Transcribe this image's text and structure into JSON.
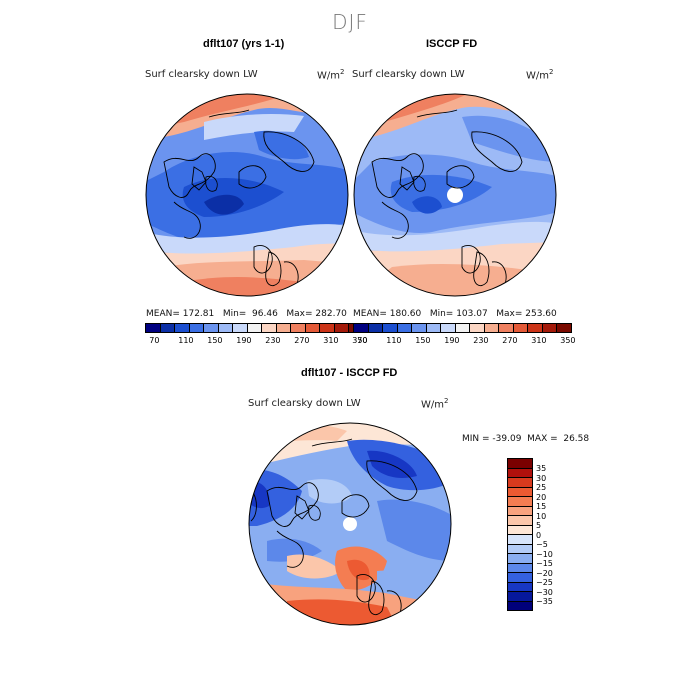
{
  "page": {
    "title": "DJF"
  },
  "panels": [
    {
      "title": "dflt107 (yrs 1-1)",
      "variable": "Surf clearsky down LW",
      "unit": "W/m",
      "unit_sup": "2",
      "stats": "MEAN= 172.81   Min=  96.46   Max= 282.70"
    },
    {
      "title": "ISCCP FD",
      "variable": "Surf clearsky down LW",
      "unit": "W/m",
      "unit_sup": "2",
      "stats": "MEAN= 180.60   Min= 103.07   Max= 253.60"
    },
    {
      "title": "dflt107 - ISCCP FD",
      "variable": "Surf clearsky down LW",
      "unit": "W/m",
      "unit_sup": "2",
      "stats": "MIN = -39.09  MAX =  26.58"
    }
  ],
  "colorbar_abs": {
    "colors": [
      "#000080",
      "#0b2fa6",
      "#1c4fd0",
      "#3b6fe4",
      "#6b94ef",
      "#9dbaf6",
      "#c9d9fa",
      "#f2f2f2",
      "#fbd6c4",
      "#f6ae90",
      "#ef8060",
      "#e45a38",
      "#cc3418",
      "#a41a0a",
      "#7a0a00"
    ],
    "ticks": [
      "70",
      "110",
      "150",
      "190",
      "230",
      "270",
      "310",
      "350"
    ]
  },
  "colorbar_diff": {
    "colors": [
      "#7a0000",
      "#b0100c",
      "#d83a1e",
      "#ec5a32",
      "#f47d52",
      "#f8a27e",
      "#fbc6aa",
      "#fde6d6",
      "#d6e4fb",
      "#b3ccf7",
      "#8aaef1",
      "#5c88ea",
      "#3461df",
      "#1737c4",
      "#06189c",
      "#00007a"
    ],
    "labels": [
      "35",
      "30",
      "25",
      "20",
      "15",
      "10",
      "5",
      "0",
      "−5",
      "−10",
      "−15",
      "−20",
      "−25",
      "−30",
      "−35"
    ]
  }
}
